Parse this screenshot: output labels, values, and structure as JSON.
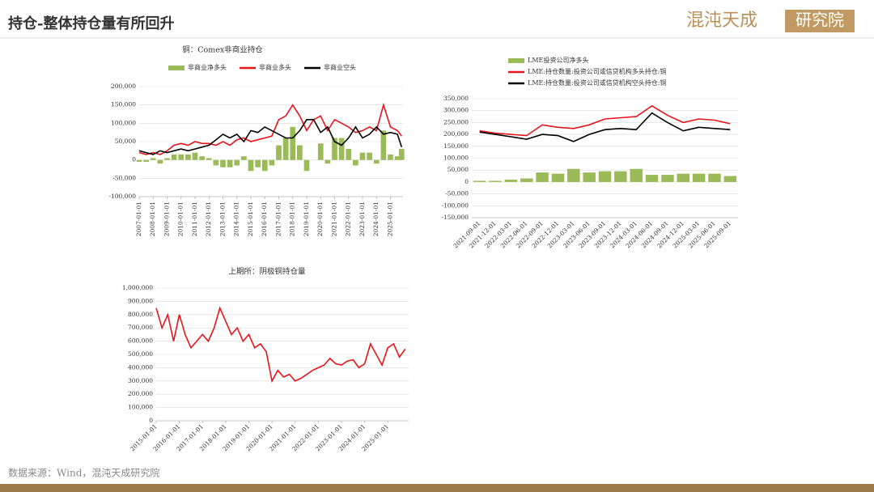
{
  "header": {
    "title": "持仓-整体持仓量有所回升",
    "logo_left": "混沌天成",
    "logo_right": "研究院"
  },
  "footer": {
    "source": "数据来源：Wind，混沌天成研究院"
  },
  "chart_data": [
    {
      "type": "line",
      "title": "铜：Comex非商业持仓",
      "legend": "top",
      "grid": true,
      "x": [
        2007,
        2007.5,
        2008,
        2008.5,
        2009,
        2009.5,
        2010,
        2010.5,
        2011,
        2011.5,
        2012,
        2012.5,
        2013,
        2013.5,
        2014,
        2014.5,
        2015,
        2015.5,
        2016,
        2016.5,
        2017,
        2017.5,
        2018,
        2018.5,
        2019,
        2019.5,
        2020,
        2020.5,
        2021,
        2021.5,
        2022,
        2022.5,
        2023,
        2023.5,
        2024,
        2024.5,
        2025,
        2025.5,
        2025.8
      ],
      "xlim": [
        2007,
        2025.9
      ],
      "xticks": [
        {
          "value": 2007,
          "label": "2007-01-01"
        },
        {
          "value": 2008,
          "label": "2008-01-01"
        },
        {
          "value": 2009,
          "label": "2009-01-01"
        },
        {
          "value": 2010,
          "label": "2010-01-01"
        },
        {
          "value": 2011,
          "label": "2011-01-01"
        },
        {
          "value": 2012,
          "label": "2012-01-01"
        },
        {
          "value": 2013,
          "label": "2013-01-01"
        },
        {
          "value": 2014,
          "label": "2014-01-01"
        },
        {
          "value": 2015,
          "label": "2015-01-01"
        },
        {
          "value": 2016,
          "label": "2016-01-01"
        },
        {
          "value": 2017,
          "label": "2017-01-01"
        },
        {
          "value": 2018,
          "label": "2018-01-01"
        },
        {
          "value": 2019,
          "label": "2019-01-01"
        },
        {
          "value": 2020,
          "label": "2020-01-01"
        },
        {
          "value": 2021,
          "label": "2021-01-01"
        },
        {
          "value": 2022,
          "label": "2022-01-01"
        },
        {
          "value": 2023,
          "label": "2023-01-01"
        },
        {
          "value": 2024,
          "label": "2024-01-01"
        },
        {
          "value": 2025,
          "label": "2025-01-01"
        }
      ],
      "ylim": [
        -100000,
        200000
      ],
      "yticks": [
        {
          "value": -100000,
          "label": "-100,000"
        },
        {
          "value": -50000,
          "label": "-50,000"
        },
        0,
        {
          "value": 50000,
          "label": "50,000"
        },
        {
          "value": 100000,
          "label": "100,000"
        },
        {
          "value": 150000,
          "label": "150,000"
        },
        {
          "value": 200000,
          "label": "200,000"
        }
      ],
      "series": [
        {
          "name": "非商业净多头",
          "type": "bar",
          "color": "#9bbb59",
          "values": [
            -5000,
            -5000,
            5000,
            -10000,
            5000,
            15000,
            15000,
            15000,
            20000,
            10000,
            5000,
            -15000,
            -20000,
            -20000,
            -15000,
            10000,
            -30000,
            -20000,
            -30000,
            -15000,
            40000,
            60000,
            90000,
            40000,
            -30000,
            0,
            45000,
            -10000,
            60000,
            60000,
            30000,
            -15000,
            20000,
            20000,
            -10000,
            80000,
            15000,
            10000,
            30000
          ]
        },
        {
          "name": "非商业多头",
          "type": "line",
          "color": "#e8141c",
          "values": [
            20000,
            15000,
            20000,
            15000,
            25000,
            40000,
            45000,
            40000,
            50000,
            45000,
            45000,
            40000,
            50000,
            40000,
            55000,
            60000,
            50000,
            55000,
            60000,
            65000,
            110000,
            120000,
            150000,
            120000,
            80000,
            110000,
            120000,
            80000,
            110000,
            100000,
            90000,
            75000,
            80000,
            90000,
            80000,
            150000,
            90000,
            80000,
            65000
          ]
        },
        {
          "name": "非商业空头",
          "type": "line",
          "color": "#000000",
          "values": [
            25000,
            20000,
            15000,
            25000,
            20000,
            25000,
            30000,
            25000,
            30000,
            35000,
            40000,
            55000,
            70000,
            60000,
            70000,
            50000,
            80000,
            75000,
            90000,
            80000,
            70000,
            60000,
            60000,
            80000,
            110000,
            110000,
            75000,
            90000,
            50000,
            40000,
            60000,
            90000,
            60000,
            70000,
            90000,
            70000,
            75000,
            70000,
            35000
          ]
        }
      ]
    },
    {
      "type": "line",
      "legend": "top",
      "grid": true,
      "categories": [
        "2021-09-01",
        "2021-12-01",
        "2022-03-01",
        "2022-06-01",
        "2022-09-01",
        "2022-12-01",
        "2023-03-01",
        "2023-06-01",
        "2023-09-01",
        "2023-12-01",
        "2024-03-01",
        "2024-06-01",
        "2024-09-01",
        "2024-12-01",
        "2025-03-01",
        "2025-06-01",
        "2025-09-01"
      ],
      "ylim": [
        -150000,
        350000
      ],
      "yticks": [
        {
          "value": -150000,
          "label": "-150,000"
        },
        {
          "value": -100000,
          "label": "-100,000"
        },
        {
          "value": -50000,
          "label": "-50,000"
        },
        0,
        {
          "value": 50000,
          "label": "50,000"
        },
        {
          "value": 100000,
          "label": "100,000"
        },
        {
          "value": 150000,
          "label": "150,000"
        },
        {
          "value": 200000,
          "label": "200,000"
        },
        {
          "value": 250000,
          "label": "250,000"
        },
        {
          "value": 300000,
          "label": "300,000"
        },
        {
          "value": 350000,
          "label": "350,000"
        }
      ],
      "series": [
        {
          "name": "LME投资公司净多头",
          "type": "bar",
          "color": "#9bbb59",
          "values": [
            5000,
            5000,
            10000,
            15000,
            40000,
            35000,
            55000,
            40000,
            45000,
            45000,
            55000,
            30000,
            30000,
            35000,
            35000,
            35000,
            25000
          ]
        },
        {
          "name": "LME:持仓数量:投资公司或信贷机构多头持仓:铜",
          "type": "line",
          "color": "#e8141c",
          "values": [
            215000,
            205000,
            200000,
            195000,
            240000,
            230000,
            225000,
            240000,
            265000,
            270000,
            275000,
            320000,
            280000,
            250000,
            265000,
            260000,
            245000
          ]
        },
        {
          "name": "LME:持仓数量:投资公司或信贷机构空头持仓:铜",
          "type": "line",
          "color": "#000000",
          "values": [
            210000,
            200000,
            190000,
            180000,
            200000,
            195000,
            170000,
            200000,
            220000,
            225000,
            220000,
            290000,
            250000,
            215000,
            230000,
            225000,
            220000
          ]
        }
      ]
    },
    {
      "type": "line",
      "title": "上期所：阴极铜持仓量",
      "grid": true,
      "x": [
        2015,
        2015.25,
        2015.5,
        2015.75,
        2016,
        2016.25,
        2016.5,
        2016.75,
        2017,
        2017.25,
        2017.5,
        2017.75,
        2018,
        2018.25,
        2018.5,
        2018.75,
        2019,
        2019.25,
        2019.5,
        2019.75,
        2020,
        2020.25,
        2020.5,
        2020.75,
        2021,
        2021.25,
        2021.5,
        2021.75,
        2022,
        2022.25,
        2022.5,
        2022.75,
        2023,
        2023.25,
        2023.5,
        2023.75,
        2024,
        2024.25,
        2024.5,
        2024.75,
        2025,
        2025.25,
        2025.5,
        2025.75
      ],
      "xlim": [
        2015,
        2025.9
      ],
      "xticks": [
        {
          "value": 2015,
          "label": "2015-01-01"
        },
        {
          "value": 2016,
          "label": "2016-01-01"
        },
        {
          "value": 2017,
          "label": "2017-01-01"
        },
        {
          "value": 2018,
          "label": "2018-01-01"
        },
        {
          "value": 2019,
          "label": "2019-01-01"
        },
        {
          "value": 2020,
          "label": "2020-01-01"
        },
        {
          "value": 2021,
          "label": "2021-01-01"
        },
        {
          "value": 2022,
          "label": "2022-01-01"
        },
        {
          "value": 2023,
          "label": "2023-01-01"
        },
        {
          "value": 2024,
          "label": "2024-01-01"
        },
        {
          "value": 2025,
          "label": "2025-01-01"
        }
      ],
      "ylim": [
        0,
        1000000
      ],
      "yticks": [
        0,
        {
          "value": 100000,
          "label": "100,000"
        },
        {
          "value": 200000,
          "label": "200,000"
        },
        {
          "value": 300000,
          "label": "300,000"
        },
        {
          "value": 400000,
          "label": "400,000"
        },
        {
          "value": 500000,
          "label": "500,000"
        },
        {
          "value": 600000,
          "label": "600,000"
        },
        {
          "value": 700000,
          "label": "700,000"
        },
        {
          "value": 800000,
          "label": "800,000"
        },
        {
          "value": 900000,
          "label": "900,000"
        },
        {
          "value": 1000000,
          "label": "1,000,000"
        }
      ],
      "series": [
        {
          "type": "line",
          "color": "#e8141c",
          "values": [
            850000,
            700000,
            800000,
            600000,
            800000,
            650000,
            550000,
            600000,
            650000,
            600000,
            700000,
            850000,
            750000,
            650000,
            700000,
            600000,
            650000,
            550000,
            580000,
            520000,
            300000,
            380000,
            330000,
            350000,
            300000,
            320000,
            350000,
            380000,
            400000,
            420000,
            470000,
            430000,
            420000,
            450000,
            460000,
            400000,
            430000,
            580000,
            500000,
            420000,
            550000,
            580000,
            480000,
            540000
          ]
        }
      ]
    }
  ]
}
